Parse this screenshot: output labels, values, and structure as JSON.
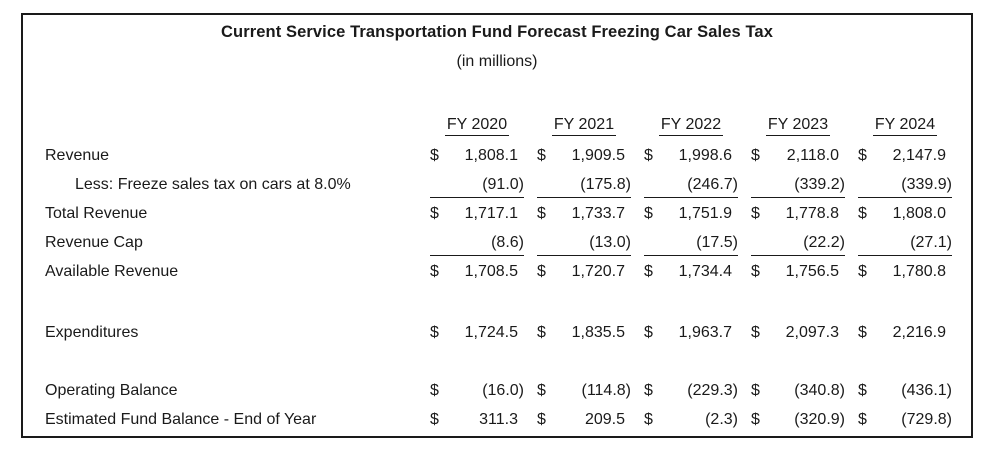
{
  "title": "Current Service Transportation Fund Forecast Freezing Car Sales Tax",
  "subtitle": "(in millions)",
  "currency_symbol": "$",
  "table": {
    "columns": [
      "FY 2020",
      "FY 2021",
      "FY 2022",
      "FY 2023",
      "FY 2024"
    ],
    "rows": [
      {
        "type": "data",
        "label": "Revenue",
        "indent": false,
        "dollar": true,
        "rule_below": false,
        "values": [
          "1,808.1",
          "1,909.5",
          "1,998.6",
          "2,118.0",
          "2,147.9"
        ]
      },
      {
        "type": "data",
        "label": "Less: Freeze sales tax on cars at 8.0%",
        "indent": true,
        "dollar": false,
        "rule_below": true,
        "values": [
          "(91.0)",
          "(175.8)",
          "(246.7)",
          "(339.2)",
          "(339.9)"
        ]
      },
      {
        "type": "data",
        "label": "Total Revenue",
        "indent": false,
        "dollar": true,
        "rule_below": false,
        "values": [
          "1,717.1",
          "1,733.7",
          "1,751.9",
          "1,778.8",
          "1,808.0"
        ]
      },
      {
        "type": "data",
        "label": "Revenue Cap",
        "indent": false,
        "dollar": false,
        "rule_below": true,
        "values": [
          "(8.6)",
          "(13.0)",
          "(17.5)",
          "(22.2)",
          "(27.1)"
        ]
      },
      {
        "type": "data",
        "label": "Available Revenue",
        "indent": false,
        "dollar": true,
        "rule_below": false,
        "values": [
          "1,708.5",
          "1,720.7",
          "1,734.4",
          "1,756.5",
          "1,780.8"
        ]
      },
      {
        "type": "spacer",
        "height": 32
      },
      {
        "type": "data",
        "label": "Expenditures",
        "indent": false,
        "dollar": true,
        "rule_below": false,
        "values": [
          "1,724.5",
          "1,835.5",
          "1,963.7",
          "2,097.3",
          "2,216.9"
        ]
      },
      {
        "type": "spacer",
        "height": 29
      },
      {
        "type": "data",
        "label": "Operating Balance",
        "indent": false,
        "dollar": true,
        "rule_below": false,
        "values": [
          "(16.0)",
          "(114.8)",
          "(229.3)",
          "(340.8)",
          "(436.1)"
        ]
      },
      {
        "type": "data",
        "label": "Estimated Fund Balance - End of Year",
        "indent": false,
        "dollar": true,
        "rule_below": false,
        "values": [
          "311.3",
          "209.5",
          "(2.3)",
          "(320.9)",
          "(729.8)"
        ]
      }
    ]
  }
}
